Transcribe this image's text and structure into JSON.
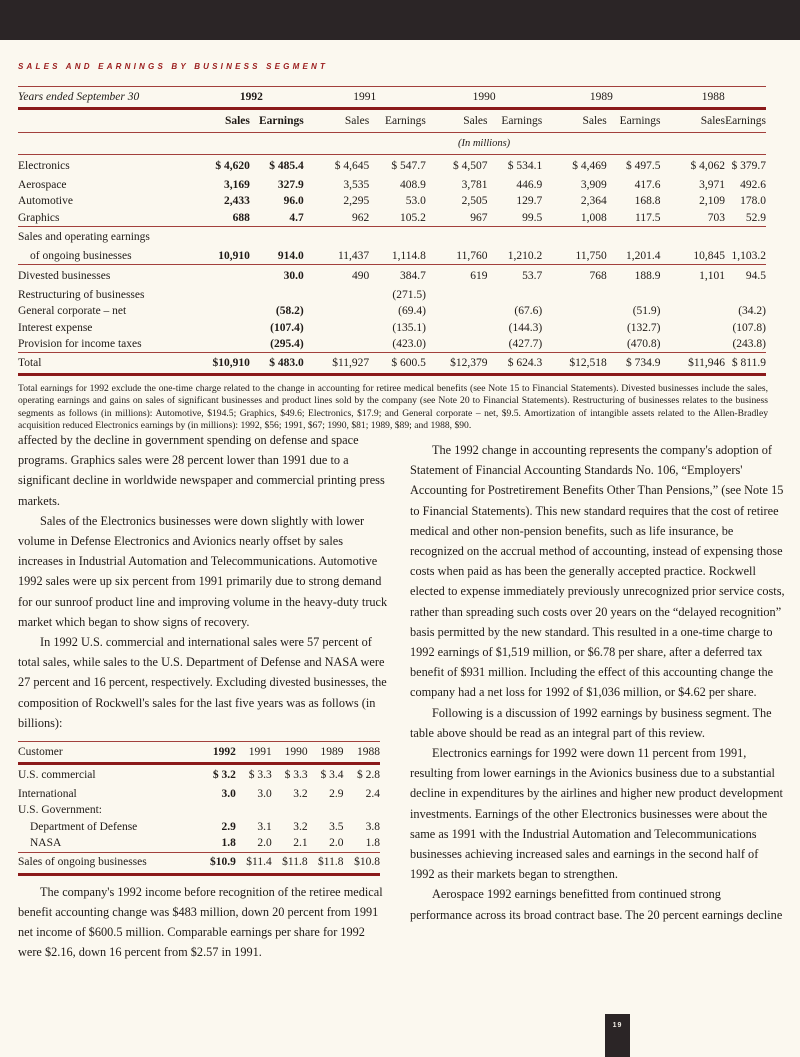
{
  "section_title": "Sales and Earnings by Business Segment",
  "segment_table": {
    "header_label": "Years ended September 30",
    "years": [
      "1992",
      "1991",
      "1990",
      "1989",
      "1988"
    ],
    "sub_headers": [
      "Sales",
      "Earnings"
    ],
    "units_note": "(In millions)",
    "groups": [
      [
        {
          "label": "Electronics",
          "values": [
            "$ 4,620",
            "$ 485.4",
            "$ 4,645",
            "$ 547.7",
            "$ 4,507",
            "$ 534.1",
            "$ 4,469",
            "$ 497.5",
            "$ 4,062",
            "$  379.7"
          ]
        },
        {
          "label": "Aerospace",
          "values": [
            "3,169",
            "327.9",
            "3,535",
            "408.9",
            "3,781",
            "446.9",
            "3,909",
            "417.6",
            "3,971",
            "492.6"
          ]
        },
        {
          "label": "Automotive",
          "values": [
            "2,433",
            "96.0",
            "2,295",
            "53.0",
            "2,505",
            "129.7",
            "2,364",
            "168.8",
            "2,109",
            "178.0"
          ]
        },
        {
          "label": "Graphics",
          "values": [
            "688",
            "4.7",
            "962",
            "105.2",
            "967",
            "99.5",
            "1,008",
            "117.5",
            "703",
            "52.9"
          ]
        }
      ],
      [
        {
          "label": "Sales and operating earnings",
          "values": [
            "",
            "",
            "",
            "",
            "",
            "",
            "",
            "",
            "",
            ""
          ]
        },
        {
          "label": "of ongoing businesses",
          "indent": true,
          "values": [
            "10,910",
            "914.0",
            "11,437",
            "1,114.8",
            "11,760",
            "1,210.2",
            "11,750",
            "1,201.4",
            "10,845",
            "1,103.2"
          ]
        }
      ],
      [
        {
          "label": "Divested businesses",
          "values": [
            "",
            "30.0",
            "490",
            "384.7",
            "619",
            "53.7",
            "768",
            "188.9",
            "1,101",
            "94.5"
          ]
        },
        {
          "label": "Restructuring of businesses",
          "values": [
            "",
            "",
            "",
            "(271.5)",
            "",
            "",
            "",
            "",
            "",
            ""
          ]
        },
        {
          "label": "General corporate – net",
          "values": [
            "",
            "(58.2)",
            "",
            "(69.4)",
            "",
            "(67.6)",
            "",
            "(51.9)",
            "",
            "(34.2)"
          ]
        },
        {
          "label": "Interest expense",
          "values": [
            "",
            "(107.4)",
            "",
            "(135.1)",
            "",
            "(144.3)",
            "",
            "(132.7)",
            "",
            "(107.8)"
          ]
        },
        {
          "label": "Provision for income taxes",
          "values": [
            "",
            "(295.4)",
            "",
            "(423.0)",
            "",
            "(427.7)",
            "",
            "(470.8)",
            "",
            "(243.8)"
          ]
        }
      ],
      [
        {
          "label": "Total",
          "values": [
            "$10,910",
            "$ 483.0",
            "$11,927",
            "$ 600.5",
            "$12,379",
            "$ 624.3",
            "$12,518",
            "$ 734.9",
            "$11,946",
            "$ 811.9"
          ]
        }
      ]
    ],
    "footnote": "Total earnings for 1992 exclude the one-time charge related to the change in accounting for retiree medical benefits (see Note 15 to Financial Statements). Divested businesses include the sales, operating earnings and gains on sales of significant businesses and product lines sold by the company (see Note 20 to Financial Statements). Restructuring of businesses relates to the business segments as follows (in millions): Automotive, $194.5; Graphics, $49.6; Electronics, $17.9; and General corporate – net, $9.5. Amortization of intangible assets related to the Allen-Bradley acquisition reduced Electronics earnings by (in millions): 1992, $56; 1991, $67; 1990, $81; 1989, $89; and 1988, $90."
  },
  "left_column": {
    "paragraphs_before": [
      "affected by the decline in government spending on defense and space programs. Graphics sales were 28 percent lower than 1991 due to a significant decline in worldwide newspaper and commercial printing press markets.",
      "Sales of the Electronics businesses were down slightly with lower volume in Defense Electronics and Avionics nearly offset by sales increases in Industrial Automation and Telecommunications. Automotive 1992 sales were up six percent from 1991 primarily due to strong demand for our sunroof product line and improving volume in the heavy-duty truck market which began to show signs of recovery.",
      "In 1992 U.S. commercial and international sales were 57 percent of total sales, while sales to the U.S. Department of Defense and NASA were 27 percent and 16 percent, respectively. Excluding divested businesses, the composition of Rockwell's sales for the last five years was as follows (in billions):"
    ],
    "customer_table": {
      "header": [
        "Customer",
        "1992",
        "1991",
        "1990",
        "1989",
        "1988"
      ],
      "rows": [
        {
          "label": "U.S. commercial",
          "values": [
            "$ 3.2",
            "$ 3.3",
            "$ 3.3",
            "$ 3.4",
            "$ 2.8"
          ]
        },
        {
          "label": "International",
          "values": [
            "3.0",
            "3.0",
            "3.2",
            "2.9",
            "2.4"
          ]
        },
        {
          "label": "U.S. Government:",
          "values": [
            "",
            "",
            "",
            "",
            ""
          ]
        },
        {
          "label": "Department of Defense",
          "indent": true,
          "values": [
            "2.9",
            "3.1",
            "3.2",
            "3.5",
            "3.8"
          ]
        },
        {
          "label": "NASA",
          "indent": true,
          "values": [
            "1.8",
            "2.0",
            "2.1",
            "2.0",
            "1.8"
          ]
        }
      ],
      "total": {
        "label": "Sales of ongoing businesses",
        "values": [
          "$10.9",
          "$11.4",
          "$11.8",
          "$11.8",
          "$10.8"
        ]
      }
    },
    "paragraphs_after": [
      "The company's 1992 income before recognition of the retiree medical benefit accounting change was $483 million, down 20 percent from 1991 net income of $600.5 million. Comparable earnings per share for 1992 were $2.16, down 16 percent from $2.57 in 1991."
    ]
  },
  "right_column": {
    "paragraphs": [
      "The 1992 change in accounting represents the company's adoption of Statement of Financial Accounting Standards No. 106, “Employers' Accounting for Postretirement Benefits Other Than Pensions,” (see Note 15 to Financial Statements). This new standard requires that the cost of retiree medical and other non-pension benefits, such as life insurance, be recognized on the accrual method of accounting, instead of expensing those costs when paid as has been the generally accepted practice. Rockwell elected to expense immediately previously unrecognized prior service costs, rather than spreading such costs over 20 years on the “delayed recognition” basis permitted by the new standard. This resulted in a one-time charge to 1992 earnings of $1,519 million, or $6.78 per share, after a deferred tax benefit of $931 million. Including the effect of this accounting change the company had a net loss for 1992 of $1,036 million, or $4.62 per share.",
      "Following is a discussion of 1992 earnings by business segment. The table above should be read as an integral part of this review.",
      "Electronics earnings for 1992 were down 11 percent from 1991, resulting from lower earnings in the Avionics business due to a substantial decline in expenditures by the airlines and higher new product development investments. Earnings of the other Electronics businesses were about the same as 1991 with the Industrial Automation and Telecommunications businesses achieving increased sales and earnings in the second half of 1992 as their markets began to strengthen.",
      "Aerospace 1992 earnings benefitted from continued strong performance across its broad contract base. The 20 percent earnings decline"
    ]
  },
  "page_number": "19",
  "colors": {
    "accent": "#8b1a1a",
    "band": "#2b2526",
    "paper": "#fbf8ef"
  }
}
